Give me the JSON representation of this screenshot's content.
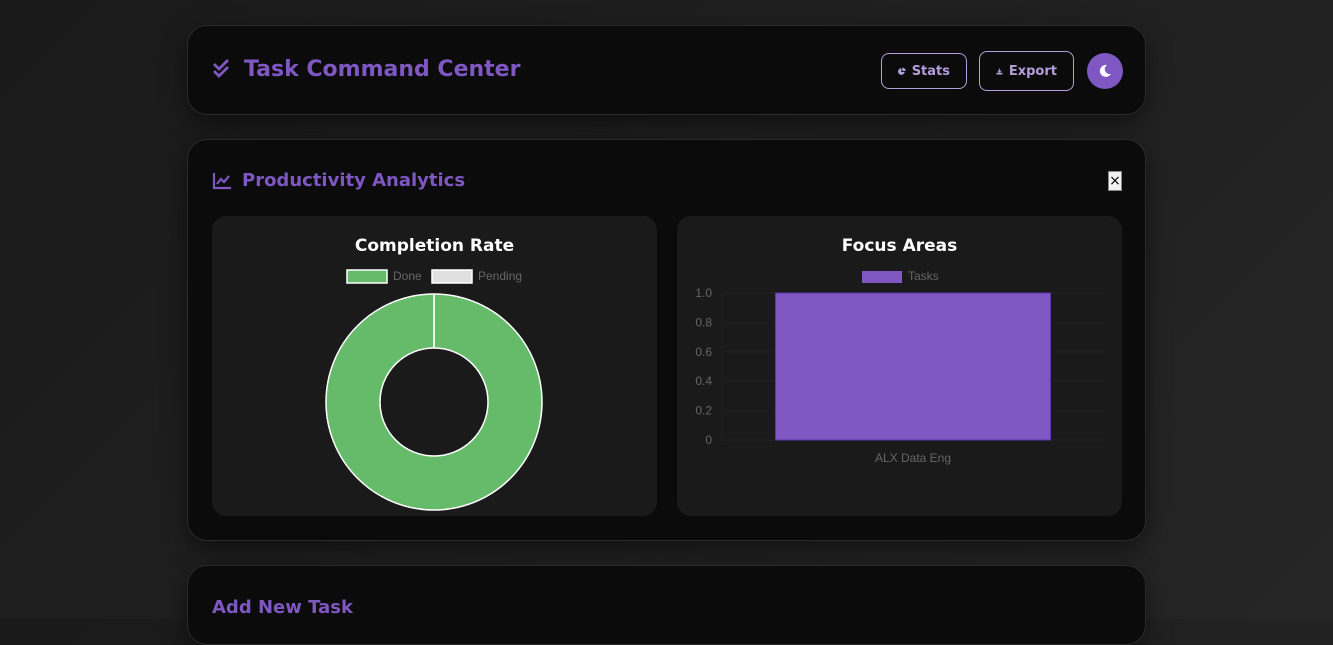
{
  "header": {
    "title": "Task Command Center",
    "stats_label": "Stats",
    "export_label": "Export"
  },
  "analytics": {
    "title": "Productivity Analytics",
    "close_label": "×"
  },
  "add_task": {
    "title": "Add New Task"
  },
  "colors": {
    "accent": "#7e57c2",
    "done": "#66bb6a",
    "pending": "#e0e0e0"
  },
  "chart_data": [
    {
      "type": "pie",
      "title": "Completion Rate",
      "categories": [
        "Done",
        "Pending"
      ],
      "values": [
        1,
        0
      ],
      "legend": "top",
      "donut": true
    },
    {
      "type": "bar",
      "title": "Focus Areas",
      "categories": [
        "ALX Data Eng"
      ],
      "series": [
        {
          "name": "Tasks",
          "values": [
            1
          ]
        }
      ],
      "ylim": [
        0,
        1
      ],
      "yticks": [
        "0",
        "0.2",
        "0.4",
        "0.6",
        "0.8",
        "1.0"
      ],
      "legend": "top",
      "grid": true
    }
  ]
}
